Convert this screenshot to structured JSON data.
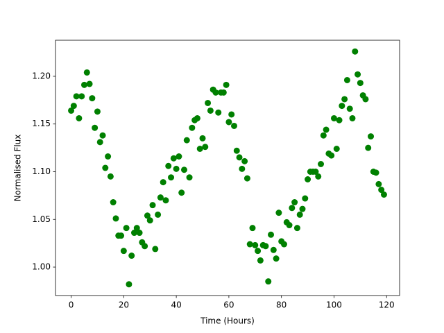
{
  "chart_data": {
    "type": "scatter",
    "xlabel": "Time (Hours)",
    "ylabel": "Normalised Flux",
    "x": [
      0,
      1,
      2,
      3,
      4,
      5,
      6,
      7,
      8,
      9,
      10,
      11,
      12,
      13,
      14,
      15,
      16,
      17,
      18,
      19,
      20,
      21,
      22,
      23,
      24,
      25,
      26,
      27,
      28,
      29,
      30,
      31,
      32,
      33,
      34,
      35,
      36,
      37,
      38,
      39,
      40,
      41,
      42,
      43,
      44,
      45,
      46,
      47,
      48,
      49,
      50,
      51,
      52,
      53,
      54,
      55,
      56,
      57,
      58,
      59,
      60,
      61,
      62,
      63,
      64,
      65,
      66,
      67,
      68,
      69,
      70,
      71,
      72,
      73,
      74,
      75,
      76,
      77,
      78,
      79,
      80,
      81,
      82,
      83,
      84,
      85,
      86,
      87,
      88,
      89,
      90,
      91,
      92,
      93,
      94,
      95,
      96,
      97,
      98,
      99,
      100,
      101,
      102,
      103,
      104,
      105,
      106,
      107,
      108,
      109,
      110,
      111,
      112,
      113,
      114,
      115,
      116,
      117,
      118,
      119
    ],
    "series": [
      {
        "color": "#008000",
        "values": [
          1.164,
          1.169,
          1.179,
          1.156,
          1.179,
          1.191,
          1.204,
          1.192,
          1.177,
          1.146,
          1.163,
          1.131,
          1.138,
          1.104,
          1.116,
          1.095,
          1.068,
          1.051,
          1.033,
          1.033,
          1.017,
          1.041,
          0.982,
          1.012,
          1.036,
          1.041,
          1.036,
          1.026,
          1.022,
          1.054,
          1.049,
          1.065,
          1.019,
          1.055,
          1.073,
          1.089,
          1.07,
          1.106,
          1.094,
          1.114,
          1.103,
          1.116,
          1.078,
          1.102,
          1.133,
          1.094,
          1.146,
          1.154,
          1.156,
          1.124,
          1.135,
          1.126,
          1.172,
          1.164,
          1.186,
          1.183,
          1.162,
          1.183,
          1.183,
          1.191,
          1.152,
          1.16,
          1.148,
          1.122,
          1.115,
          1.103,
          1.111,
          1.093,
          1.024,
          1.041,
          1.023,
          1.017,
          1.007,
          1.023,
          1.022,
          0.985,
          1.034,
          1.018,
          1.009,
          1.057,
          1.027,
          1.024,
          1.047,
          1.044,
          1.062,
          1.068,
          1.041,
          1.055,
          1.061,
          1.072,
          1.092,
          1.1,
          1.1,
          1.1,
          1.095,
          1.108,
          1.138,
          1.144,
          1.119,
          1.117,
          1.156,
          1.124,
          1.154,
          1.169,
          1.176,
          1.196,
          1.166,
          1.156,
          1.226,
          1.202,
          1.193,
          1.18,
          1.176,
          1.125,
          1.137,
          1.1,
          1.099,
          1.087,
          1.081,
          1.076
        ]
      }
    ],
    "xlim": [
      -5.95,
      124.95
    ],
    "xticks": [
      0,
      20,
      40,
      60,
      80,
      100,
      120
    ],
    "ylim": [
      0.9702,
      1.2378
    ],
    "yticks": [
      {
        "value": 1.0,
        "label": "1.00"
      },
      1.05,
      {
        "value": 1.1,
        "label": "1.10"
      },
      1.15,
      {
        "value": 1.2,
        "label": "1.20"
      }
    ]
  }
}
